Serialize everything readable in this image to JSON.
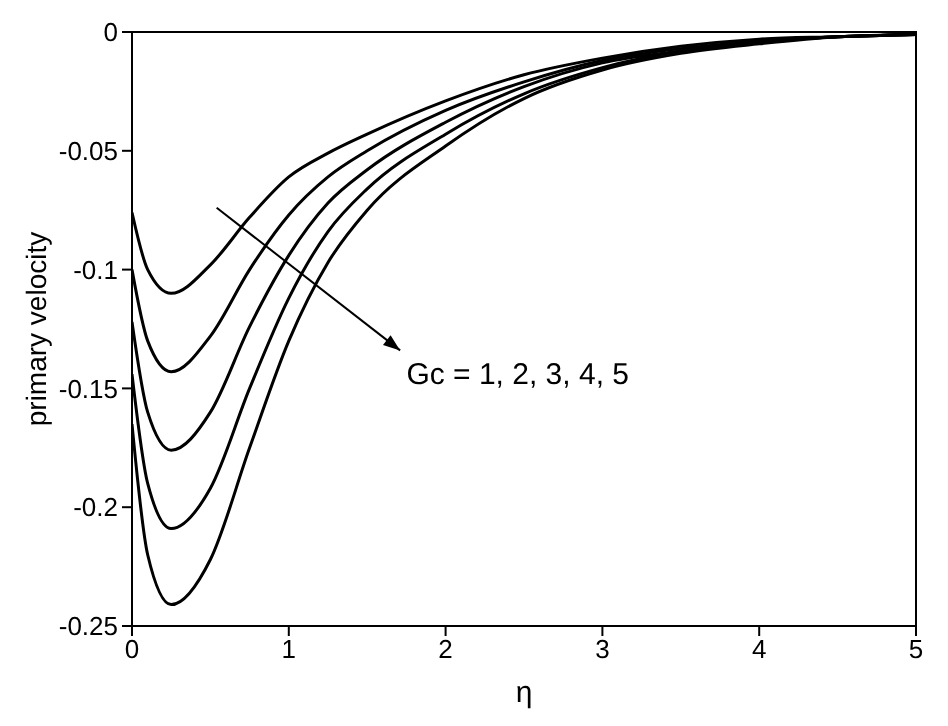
{
  "chart_data": {
    "type": "line",
    "xlabel": "η",
    "ylabel": "primary velocity",
    "x": [
      0,
      0.1,
      0.25,
      0.5,
      0.75,
      1,
      1.25,
      1.5,
      2,
      2.5,
      3,
      3.5,
      4,
      4.5,
      5
    ],
    "series": [
      {
        "color": "#000000",
        "values": [
          -0.076,
          -0.1,
          -0.11,
          -0.098,
          -0.078,
          -0.061,
          -0.051,
          -0.043,
          -0.029,
          -0.018,
          -0.011,
          -0.006,
          -0.003,
          -0.002,
          -0.001
        ]
      },
      {
        "color": "#000000",
        "values": [
          -0.1,
          -0.13,
          -0.143,
          -0.128,
          -0.1,
          -0.077,
          -0.061,
          -0.05,
          -0.033,
          -0.021,
          -0.012,
          -0.007,
          -0.004,
          -0.002,
          -0.001
        ]
      },
      {
        "color": "#000000",
        "values": [
          -0.122,
          -0.16,
          -0.176,
          -0.16,
          -0.124,
          -0.094,
          -0.072,
          -0.058,
          -0.038,
          -0.023,
          -0.013,
          -0.008,
          -0.004,
          -0.002,
          -0.001
        ]
      },
      {
        "color": "#000000",
        "values": [
          -0.144,
          -0.19,
          -0.209,
          -0.192,
          -0.15,
          -0.112,
          -0.084,
          -0.066,
          -0.043,
          -0.026,
          -0.015,
          -0.008,
          -0.004,
          -0.002,
          -0.001
        ]
      },
      {
        "color": "#000000",
        "values": [
          -0.165,
          -0.22,
          -0.241,
          -0.222,
          -0.175,
          -0.13,
          -0.097,
          -0.075,
          -0.048,
          -0.028,
          -0.016,
          -0.009,
          -0.005,
          -0.002,
          -0.001
        ]
      }
    ],
    "annotations": [
      "Gc = 1, 2, 3, 4, 5"
    ],
    "xlim": [
      0,
      5
    ],
    "xticks": [
      0,
      1,
      2,
      3,
      4,
      5
    ],
    "ylim": [
      -0.25,
      0
    ],
    "yticks": [
      -0.25,
      -0.2,
      -0.15,
      -0.1,
      -0.05,
      0
    ],
    "grid": false,
    "legend": false,
    "marker": "none",
    "line_style": "solid"
  }
}
